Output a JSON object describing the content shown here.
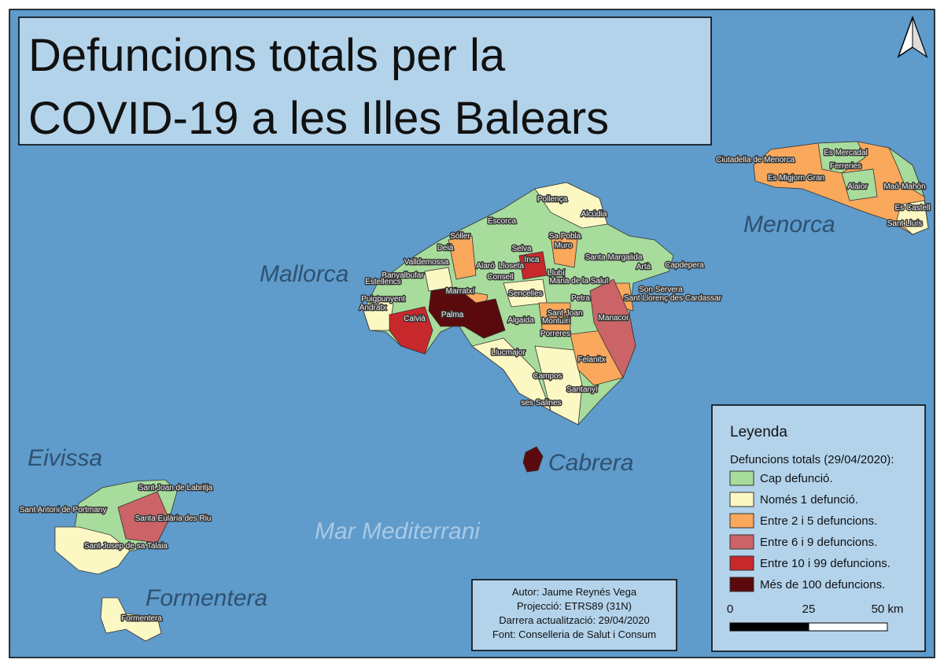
{
  "title": [
    "Defuncions totals per la",
    "COVID-19 a les Illes Balears"
  ],
  "places": {
    "mallorca": "Mallorca",
    "menorca": "Menorca",
    "eivissa": "Eivissa",
    "formentera": "Formentera",
    "sea": "Mar Mediterrani",
    "cabrera": "Cabrera"
  },
  "municipalities": [
    "Pollença",
    "Alcúdia",
    "Escorca",
    "Sóller",
    "Deià",
    "Sa Pobla",
    "Muro",
    "Selva",
    "Valldemossa",
    "Inca",
    "Santa Margalida",
    "Capdepera",
    "Alaró",
    "Lloseta",
    "Llubí",
    "Artà",
    "Banyalbufar",
    "Consell",
    "Maria de la Salut",
    "Son Servera",
    "Estellencs",
    "Sencelles",
    "Sant Llorenç des Cardassar",
    "Puigpunyent",
    "Marratxí",
    "Petra",
    "Andratx",
    "Palma",
    "Sant Joan",
    "Calvià",
    "Algaida",
    "Montuïri",
    "Manacor",
    "Porreres",
    "Felanitx",
    "Llucmajor",
    "Campos",
    "Santanyí",
    "ses Salines",
    "Ciutadella de Menorca",
    "Es Mercadal",
    "Ferreries",
    "Es Migjorn Gran",
    "Alaior",
    "Maó-Mahón",
    "Es Castell",
    "Sant Lluís",
    "Sant Joan de Labritja",
    "Sant Antoni de Portmany",
    "Santa Eulària des Riu",
    "Sant Josep de sa Talaia",
    "Formentera"
  ],
  "legend": {
    "title": "Leyenda",
    "subtitle": "Defuncions totals (29/04/2020):",
    "classes": [
      {
        "label": "Cap defunció.",
        "color": "#a8dc9c"
      },
      {
        "label": "Només 1 defunció.",
        "color": "#fcf8c4"
      },
      {
        "label": "Entre 2 i 5 defuncions.",
        "color": "#f9a85c"
      },
      {
        "label": "Entre 6 i 9 defuncions.",
        "color": "#cb6467"
      },
      {
        "label": "Entre 10 i 99 defuncions.",
        "color": "#c7282c"
      },
      {
        "label": "Més de 100 defuncions.",
        "color": "#5a0a0c"
      }
    ],
    "scale": [
      "0",
      "25",
      "50 km"
    ]
  },
  "credits": [
    "Autor: Jaume Reynés Vega",
    "Projecció: ETRS89 (31N)",
    "Darrera actualització: 29/04/2020",
    "Font: Conselleria de Salut i Consum"
  ]
}
